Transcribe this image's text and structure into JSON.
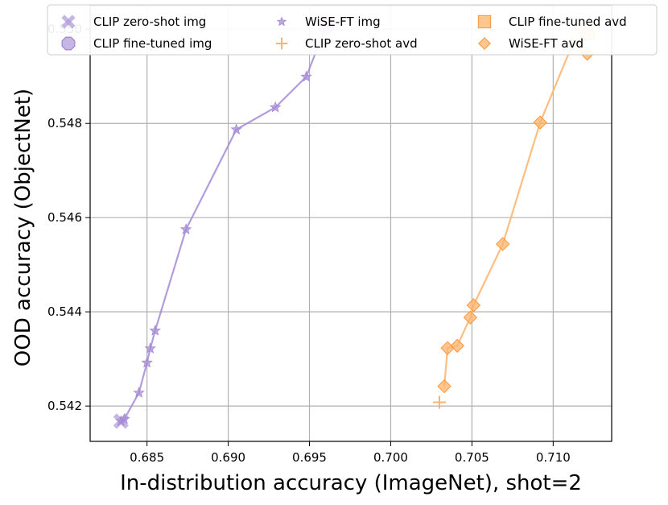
{
  "chart_data": {
    "type": "scatter",
    "xlabel": "In-distribution accuracy (ImageNet), shot=2",
    "ylabel": "OOD accuracy (ObjectNet)",
    "xlim": [
      0.6815,
      0.7136
    ],
    "ylim": [
      0.54125,
      0.5505
    ],
    "xticks": [
      0.685,
      0.69,
      0.695,
      0.7,
      0.705,
      0.71
    ],
    "xtick_labels": [
      "0.685",
      "0.690",
      "0.695",
      "0.700",
      "0.705",
      "0.710"
    ],
    "yticks": [
      0.542,
      0.544,
      0.546,
      0.548,
      0.55
    ],
    "ytick_labels": [
      "0.542",
      "0.544",
      "0.546",
      "0.548",
      "0.550"
    ],
    "grid": true,
    "legend_position": "top",
    "colors": {
      "purple": "#b39ddb",
      "purple_dark": "#9575cd",
      "orange": "#ffb36b",
      "orange_dark": "#f7963c"
    },
    "series": [
      {
        "name": "CLIP zero-shot img",
        "marker": "x",
        "color": "#b39ddb",
        "x": [
          0.6834
        ],
        "y": [
          0.54168
        ]
      },
      {
        "name": "CLIP fine-tuned img",
        "marker": "octagon",
        "color": "#b39ddb",
        "x": [
          0.696
        ],
        "y": [
          0.55005
        ]
      },
      {
        "name": "WiSE-FT img",
        "marker": "star",
        "color": "#a68bd6",
        "line": true,
        "x": [
          0.6834,
          0.6836,
          0.6845,
          0.685,
          0.6852,
          0.6855,
          0.6874,
          0.6905,
          0.6929,
          0.6948,
          0.696
        ],
        "y": [
          0.54168,
          0.54172,
          0.54228,
          0.54292,
          0.54322,
          0.5436,
          0.54575,
          0.54787,
          0.54834,
          0.54899,
          0.55005
        ]
      },
      {
        "name": "CLIP zero-shot avd",
        "marker": "plus",
        "color": "#ffb36b",
        "x": [
          0.703
        ],
        "y": [
          0.54208
        ]
      },
      {
        "name": "CLIP fine-tuned avd",
        "marker": "square",
        "color": "#ffb36b",
        "x": [
          0.7121
        ],
        "y": [
          0.54992
        ]
      },
      {
        "name": "WiSE-FT avd",
        "marker": "diamond",
        "color": "#ffb36b",
        "line": true,
        "x": [
          0.7033,
          0.7035,
          0.7041,
          0.7049,
          0.7051,
          0.7069,
          0.7092,
          0.7112,
          0.7121
        ],
        "y": [
          0.54242,
          0.54323,
          0.54328,
          0.54388,
          0.54414,
          0.54544,
          0.54802,
          0.54969,
          0.54948
        ]
      }
    ]
  }
}
